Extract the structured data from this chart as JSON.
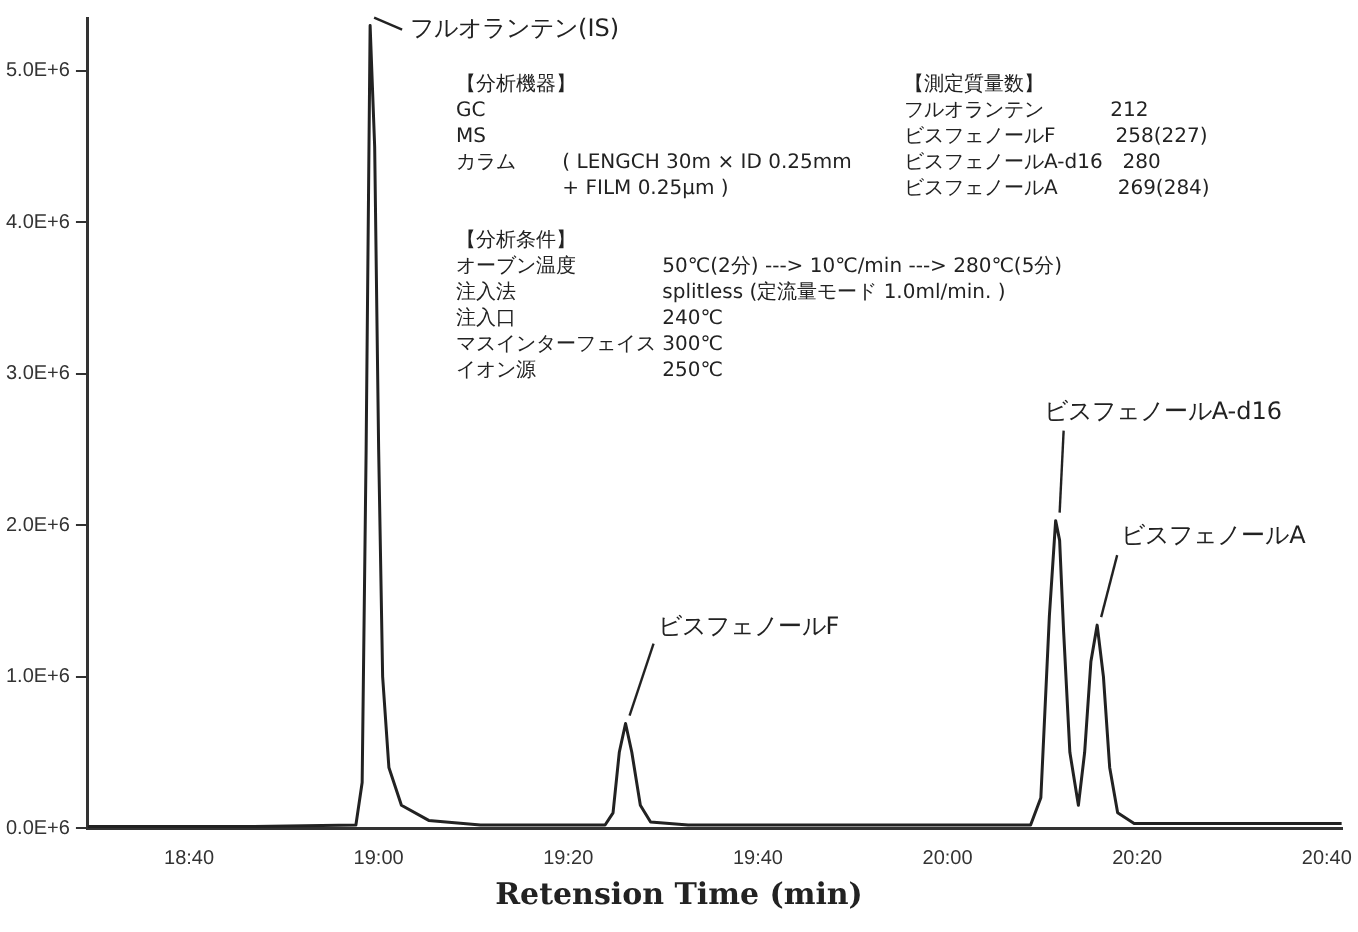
{
  "chart_data": {
    "type": "line",
    "xlabel": "Retension Time (min)",
    "xlim": [
      18.489,
      20.693
    ],
    "xticks": [
      {
        "value": 18.6667,
        "label": "18:40"
      },
      {
        "value": 19,
        "label": "19:00"
      },
      {
        "value": 19.3333,
        "label": "19:20"
      },
      {
        "value": 19.6667,
        "label": "19:40"
      },
      {
        "value": 20,
        "label": "20:00"
      },
      {
        "value": 20.3333,
        "label": "20:20"
      },
      {
        "value": 20.6667,
        "label": "20:40"
      }
    ],
    "ylim": [
      0,
      5350000
    ],
    "yticks": [
      {
        "value": 0,
        "label": "0.0E+6"
      },
      {
        "value": 1000000,
        "label": "1.0E+6"
      },
      {
        "value": 2000000,
        "label": "2.0E+6"
      },
      {
        "value": 3000000,
        "label": "3.0E+6"
      },
      {
        "value": 4000000,
        "label": "4.0E+6"
      },
      {
        "value": 5000000,
        "label": "5.0E+6"
      }
    ],
    "grid": false,
    "legend": false,
    "marker": "none",
    "line_style": "solid",
    "series": [
      {
        "color": "#222222",
        "x": [
          18.489,
          18.777,
          18.96,
          18.971,
          18.978,
          18.985,
          18.993,
          19.0,
          19.007,
          19.018,
          19.04,
          19.088,
          19.179,
          19.398,
          19.412,
          19.423,
          19.434,
          19.445,
          19.46,
          19.478,
          19.544,
          20.146,
          20.164,
          20.179,
          20.19,
          20.197,
          20.204,
          20.215,
          20.23,
          20.241,
          20.252,
          20.263,
          20.274,
          20.285,
          20.299,
          20.328,
          20.693
        ],
        "values": [
          10000,
          10000,
          20000,
          300000,
          2500000,
          5300000,
          4500000,
          2500000,
          1000000,
          400000,
          150000,
          50000,
          20000,
          20000,
          100000,
          500000,
          690000,
          500000,
          150000,
          40000,
          20000,
          20000,
          200000,
          1400000,
          2030000,
          1900000,
          1300000,
          500000,
          150000,
          500000,
          1100000,
          1340000,
          1000000,
          400000,
          100000,
          30000,
          30000
        ]
      }
    ],
    "annotations": [
      {
        "text": "フルオランテン(IS)",
        "x": 18.985,
        "y": 5300000
      },
      {
        "text": "ビスフェノールF",
        "x": 19.434,
        "y": 690000
      },
      {
        "text": "ビスフェノールA-d16",
        "x": 20.19,
        "y": 2030000
      },
      {
        "text": "ビスフェノールA",
        "x": 20.263,
        "y": 1340000
      },
      "【分析機器】",
      "GC",
      "MS",
      "カラム　　 ( LENGCH 30m × ID 0.25mm",
      "　　　　　 + FILM 0.25μm )",
      "【測定質量数】",
      "フルオランテン　　　 212",
      "ビスフェノールF　　　258(227)",
      "ビスフェノールA-d16　280",
      "ビスフェノールA　　　269(284)",
      "【分析条件】",
      "オーブン温度　　　　 50℃(2分) ---> 10℃/min ---> 280℃(5分)",
      "注入法　　　　　　　 splitless (定流量モード 1.0ml/min. )",
      "注入口　　　　　　　 240℃",
      "マスインターフェイス 300℃",
      "イオン源　　　　　　 250℃"
    ]
  }
}
